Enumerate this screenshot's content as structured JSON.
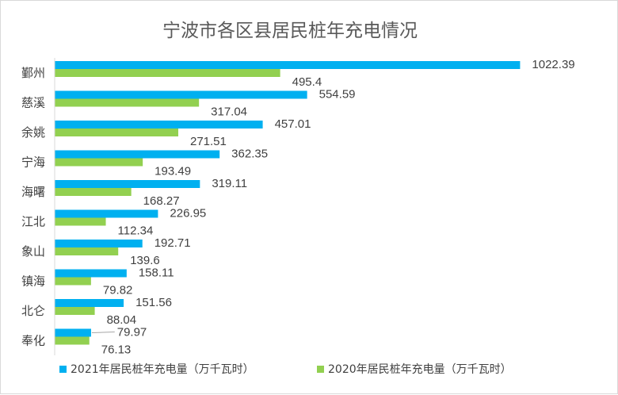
{
  "chart_data": {
    "type": "bar",
    "orientation": "horizontal",
    "title": "宁波市各区县居民桩年充电情况",
    "categories": [
      "鄞州",
      "慈溪",
      "余姚",
      "宁海",
      "海曙",
      "江北",
      "象山",
      "镇海",
      "北仑",
      "奉化"
    ],
    "series": [
      {
        "name": "2021年居民桩年充电量（万千瓦时）",
        "color": "#00b0f0",
        "values": [
          1022.39,
          554.59,
          457.01,
          362.35,
          319.11,
          226.95,
          192.71,
          158.11,
          151.56,
          79.97
        ],
        "labels": [
          "1022.39",
          "554.59",
          "457.01",
          "362.35",
          "319.11",
          "226.95",
          "192.71",
          "158.11",
          "151.56",
          "79.97"
        ]
      },
      {
        "name": "2020年居民桩年充电量（万千瓦时）",
        "color": "#92d050",
        "values": [
          495.4,
          317.04,
          271.51,
          193.49,
          168.27,
          112.34,
          139.6,
          79.82,
          88.04,
          76.13
        ],
        "labels": [
          "495.4",
          "317.04",
          "271.51",
          "193.49",
          "168.27",
          "112.34",
          "139.6",
          "79.82",
          "88.04",
          "76.13"
        ]
      }
    ],
    "xlim": [
      0,
      1100
    ],
    "grid": false,
    "legend_position": "bottom"
  }
}
